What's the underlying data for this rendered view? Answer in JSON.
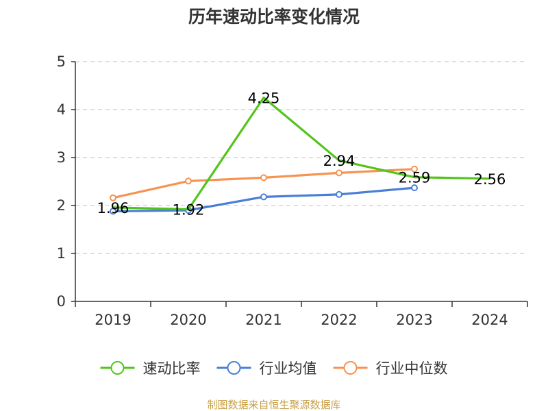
{
  "chart_data": {
    "type": "line",
    "title": "历年速动比率变化情况",
    "xlabel": "",
    "ylabel": "",
    "categories": [
      "2019",
      "2020",
      "2021",
      "2022",
      "2023",
      "2024"
    ],
    "ylim": [
      0,
      5
    ],
    "yticks": [
      "0",
      "1",
      "2",
      "3",
      "4",
      "5"
    ],
    "grid": "horizontal dashed",
    "legend_position": "bottom",
    "series": [
      {
        "name": "速动比率",
        "color": "#52c41a",
        "marker": "none",
        "values": [
          1.96,
          1.92,
          4.25,
          2.94,
          2.59,
          2.56
        ],
        "labels": [
          "1.96",
          "1.92",
          "4.25",
          "2.94",
          "2.59",
          "2.56"
        ]
      },
      {
        "name": "行业均值",
        "color": "#4a7fd8",
        "marker": "circle",
        "values": [
          1.88,
          1.9,
          2.18,
          2.23,
          2.37,
          null
        ]
      },
      {
        "name": "行业中位数",
        "color": "#f79250",
        "marker": "circle",
        "values": [
          2.16,
          2.51,
          2.58,
          2.68,
          2.76,
          null
        ]
      }
    ],
    "source_note": "制图数据来自恒生聚源数据库"
  }
}
